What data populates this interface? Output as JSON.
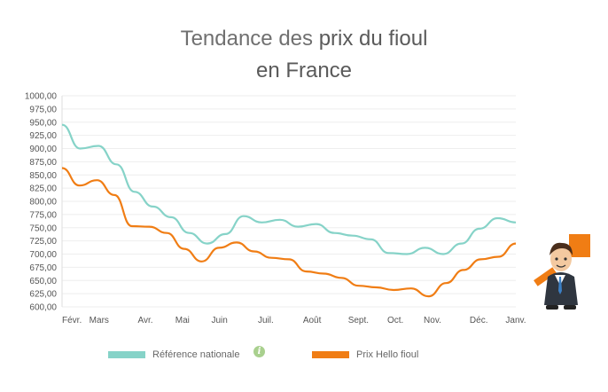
{
  "header": {
    "title_part1": "Tendance des ",
    "title_part2": "prix du fioul",
    "title_line2": "en France"
  },
  "legend": {
    "national_label": "Référence nationale",
    "hello_label": "Prix Hello fioul",
    "info_icon": "info-icon"
  },
  "colors": {
    "national": "#86d3c8",
    "hello": "#f07d14",
    "grid": "#eeeeee",
    "axis_text": "#555555"
  },
  "mascot": {
    "icon": "businessman-mascot-icon"
  },
  "chart_data": {
    "type": "line",
    "title": "Tendance des prix du fioul en France",
    "y_ticks": [
      "1000,00",
      "975,00",
      "950,00",
      "925,00",
      "900,00",
      "875,00",
      "850,00",
      "825,00",
      "800,00",
      "775,00",
      "750,00",
      "725,00",
      "700,00",
      "675,00",
      "650,00",
      "625,00",
      "600,00"
    ],
    "ylim": [
      600,
      1000
    ],
    "x_ticks": [
      "Févr.",
      "Mars",
      "Avr.",
      "Mai",
      "Juin",
      "Juil.",
      "Août",
      "Sept.",
      "Oct.",
      "Nov.",
      "Déc.",
      "Janv."
    ],
    "x_tick_index": [
      0,
      2,
      4.5,
      6.5,
      8.5,
      11,
      13.5,
      16,
      18,
      20,
      22.5,
      24.5
    ],
    "xlim": [
      0,
      24.5
    ],
    "grid": true,
    "legend_position": "bottom",
    "series": [
      {
        "name": "Référence nationale",
        "color": "#86d3c8",
        "values": [
          945,
          900,
          905,
          870,
          818,
          790,
          770,
          740,
          720,
          738,
          772,
          760,
          765,
          752,
          757,
          740,
          735,
          728,
          702,
          700,
          712,
          700,
          720,
          748,
          768,
          760
        ]
      },
      {
        "name": "Prix Hello fioul",
        "color": "#f07d14",
        "values": [
          863,
          830,
          840,
          812,
          753,
          752,
          740,
          710,
          686,
          712,
          722,
          705,
          693,
          690,
          667,
          663,
          655,
          640,
          637,
          632,
          635,
          620,
          645,
          670,
          690,
          695,
          720
        ]
      }
    ]
  }
}
